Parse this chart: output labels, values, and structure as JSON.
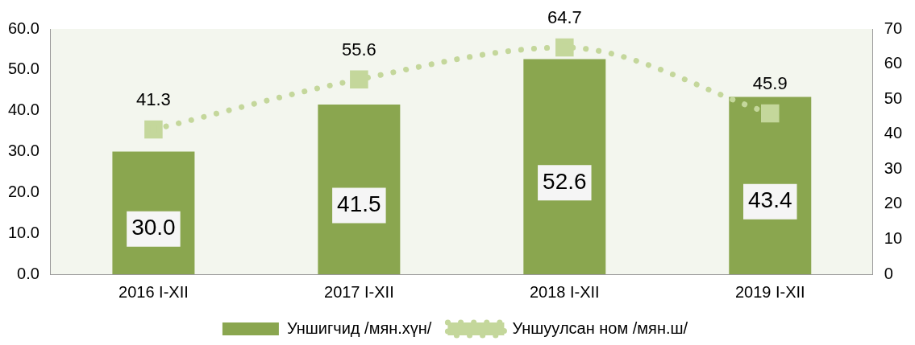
{
  "chart_data": {
    "type": "bar",
    "categories": [
      "2016 I-XII",
      "2017 I-XII",
      "2018 I-XII",
      "2019 I-XII"
    ],
    "series": [
      {
        "name": "Уншигчид /мян.хүн/",
        "color": "#8aa64f",
        "values": [
          30.0,
          41.5,
          52.6,
          43.4
        ],
        "value_labels": [
          "30.0",
          "41.5",
          "52.6",
          "43.4"
        ]
      },
      {
        "name": "Уншуулсан ном /мян.ш/",
        "type": "line",
        "axis": "y2",
        "color": "#c4d79b",
        "marker": "square",
        "line_style": "dotted",
        "values": [
          41.3,
          55.6,
          64.7,
          45.9
        ],
        "value_labels": [
          "41.3",
          "55.6",
          "64.7",
          "45.9"
        ]
      }
    ],
    "ylim": [
      0,
      60
    ],
    "yticks": [
      {
        "value": 0,
        "label": "0.0"
      },
      {
        "value": 10,
        "label": "10.0"
      },
      {
        "value": 20,
        "label": "20.0"
      },
      {
        "value": 30,
        "label": "30.0"
      },
      {
        "value": 40,
        "label": "40.0"
      },
      {
        "value": 50,
        "label": "50.0"
      },
      {
        "value": 60,
        "label": "60.0"
      }
    ],
    "y2lim": [
      0,
      70
    ],
    "y2ticks": [
      0,
      10,
      20,
      30,
      40,
      50,
      60,
      70
    ],
    "grid": false,
    "legend": "bottom"
  }
}
